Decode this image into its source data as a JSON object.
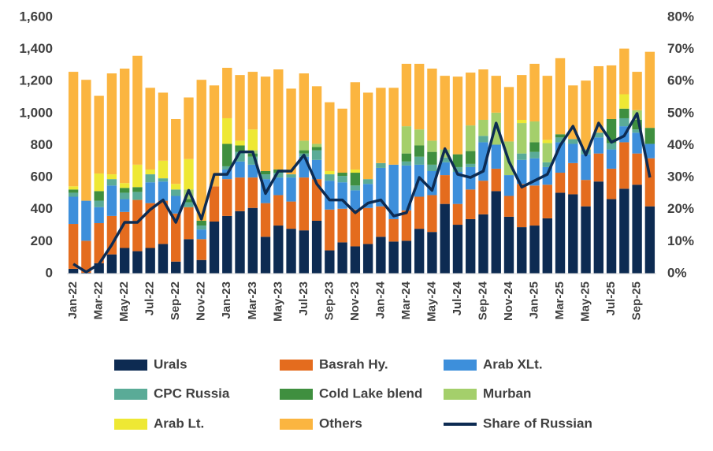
{
  "chart_data": {
    "type": "bar",
    "stacked": true,
    "categories": [
      "Jan-22",
      null,
      "Mar-22",
      null,
      "May-22",
      null,
      "Jul-22",
      null,
      "Sep-22",
      null,
      "Nov-22",
      null,
      "Jan-23",
      null,
      "Mar-23",
      null,
      "May-23",
      null,
      "Jul-23",
      null,
      "Sep-23",
      null,
      "Nov-23",
      null,
      "Jan-24",
      null,
      "Mar-24",
      null,
      "May-24",
      null,
      "Jul-24",
      null,
      "Sep-24",
      null,
      "Nov-24",
      null,
      "Jan-25",
      null,
      "Mar-25",
      null,
      "May-25",
      null,
      "Jul-25",
      null,
      "Sep-25",
      null
    ],
    "series": [
      {
        "name": "Urals",
        "color": "#0d2b52",
        "values": [
          30,
          5,
          65,
          120,
          160,
          140,
          160,
          185,
          75,
          215,
          85,
          325,
          360,
          390,
          410,
          230,
          300,
          280,
          270,
          330,
          145,
          195,
          170,
          185,
          230,
          200,
          205,
          280,
          260,
          435,
          305,
          340,
          370,
          515,
          355,
          290,
          300,
          345,
          505,
          495,
          420,
          575,
          465,
          530,
          555,
          420
        ]
      },
      {
        "name": "Basrah Hy.",
        "color": "#e46c1e",
        "values": [
          280,
          200,
          250,
          240,
          225,
          320,
          280,
          270,
          300,
          200,
          130,
          220,
          230,
          210,
          190,
          210,
          190,
          170,
          330,
          260,
          255,
          210,
          230,
          225,
          190,
          140,
          190,
          200,
          230,
          180,
          130,
          185,
          210,
          140,
          130,
          270,
          250,
          210,
          125,
          195,
          165,
          175,
          190,
          290,
          195,
          300
        ]
      },
      {
        "name": "Arab XLt.",
        "color": "#3d8fdb",
        "values": [
          170,
          250,
          100,
          190,
          80,
          0,
          130,
          120,
          110,
          0,
          60,
          0,
          60,
          100,
          80,
          150,
          110,
          150,
          130,
          120,
          180,
          165,
          120,
          150,
          240,
          340,
          280,
          200,
          150,
          80,
          200,
          140,
          240,
          150,
          130,
          150,
          170,
          110,
          190,
          120,
          160,
          100,
          120,
          100,
          130,
          90
        ]
      },
      {
        "name": "CPC Russia",
        "color": "#5aab97",
        "values": [
          25,
          0,
          40,
          40,
          40,
          50,
          50,
          20,
          40,
          30,
          25,
          0,
          20,
          60,
          50,
          30,
          30,
          20,
          20,
          60,
          40,
          40,
          30,
          30,
          30,
          0,
          25,
          50,
          40,
          30,
          30,
          20,
          40,
          0,
          0,
          40,
          40,
          30,
          30,
          30,
          30,
          30,
          40,
          50,
          20,
          0
        ]
      },
      {
        "name": "Cold Lake blend",
        "color": "#3f8f3f",
        "values": [
          20,
          0,
          60,
          0,
          30,
          30,
          0,
          0,
          0,
          20,
          30,
          0,
          140,
          40,
          20,
          20,
          20,
          0,
          20,
          20,
          0,
          20,
          80,
          0,
          0,
          0,
          50,
          70,
          80,
          0,
          80,
          80,
          0,
          0,
          0,
          0,
          60,
          0,
          20,
          0,
          0,
          0,
          150,
          60,
          60,
          100
        ]
      },
      {
        "name": "Murban",
        "color": "#a4cf6b",
        "values": [
          0,
          0,
          0,
          0,
          0,
          0,
          0,
          0,
          0,
          60,
          0,
          0,
          0,
          0,
          20,
          0,
          0,
          0,
          60,
          20,
          0,
          0,
          0,
          0,
          0,
          0,
          170,
          100,
          70,
          50,
          0,
          160,
          100,
          200,
          210,
          190,
          130,
          120,
          0,
          0,
          0,
          0,
          0,
          0,
          60,
          0
        ]
      },
      {
        "name": "Arab Lt.",
        "color": "#eee834",
        "values": [
          20,
          0,
          110,
          30,
          30,
          140,
          30,
          110,
          35,
          190,
          0,
          0,
          160,
          30,
          130,
          0,
          0,
          0,
          0,
          0,
          20,
          0,
          20,
          0,
          0,
          0,
          0,
          0,
          0,
          0,
          0,
          0,
          0,
          0,
          0,
          20,
          0,
          20,
          0,
          0,
          0,
          0,
          0,
          90,
          0,
          0
        ]
      },
      {
        "name": "Others",
        "color": "#fbb540",
        "values": [
          715,
          755,
          485,
          630,
          715,
          680,
          510,
          425,
          405,
          385,
          880,
          630,
          315,
          410,
          360,
          590,
          625,
          535,
          420,
          360,
          430,
          400,
          545,
          540,
          470,
          480,
          390,
          410,
          450,
          460,
          485,
          330,
          315,
          230,
          340,
          280,
          360,
          400,
          475,
          335,
          430,
          415,
          335,
          285,
          240,
          475
        ]
      },
      {
        "name": "Share of Russian",
        "type": "line",
        "axis": "y2",
        "color": "#0d2b52",
        "values": [
          3,
          0.5,
          3,
          9,
          16,
          16,
          20,
          23,
          16,
          26,
          17,
          31,
          31,
          38,
          38,
          25,
          32,
          32,
          37,
          28,
          23,
          23,
          19,
          22,
          23,
          18,
          19,
          30,
          26,
          39,
          31,
          30,
          32,
          47,
          35,
          27,
          29,
          31,
          40,
          46,
          37,
          47,
          41,
          43,
          50,
          30
        ]
      }
    ],
    "ylim": [
      0,
      1600
    ],
    "yticks": [
      0,
      200,
      400,
      600,
      800,
      {
        "value": 1000,
        "label": "1,000"
      },
      {
        "value": 1200,
        "label": "1,200"
      },
      {
        "value": 1400,
        "label": "1,400"
      },
      {
        "value": 1600,
        "label": "1,600"
      }
    ],
    "y2lim": [
      0,
      80
    ],
    "y2ticks": [
      {
        "value": 0,
        "label": "0%"
      },
      {
        "value": 10,
        "label": "10%"
      },
      {
        "value": 20,
        "label": "20%"
      },
      {
        "value": 30,
        "label": "30%"
      },
      {
        "value": 40,
        "label": "40%"
      },
      {
        "value": 50,
        "label": "50%"
      },
      {
        "value": 60,
        "label": "60%"
      },
      {
        "value": 70,
        "label": "70%"
      },
      {
        "value": 80,
        "label": "80%"
      }
    ],
    "grid": false,
    "legend": "bottom"
  }
}
